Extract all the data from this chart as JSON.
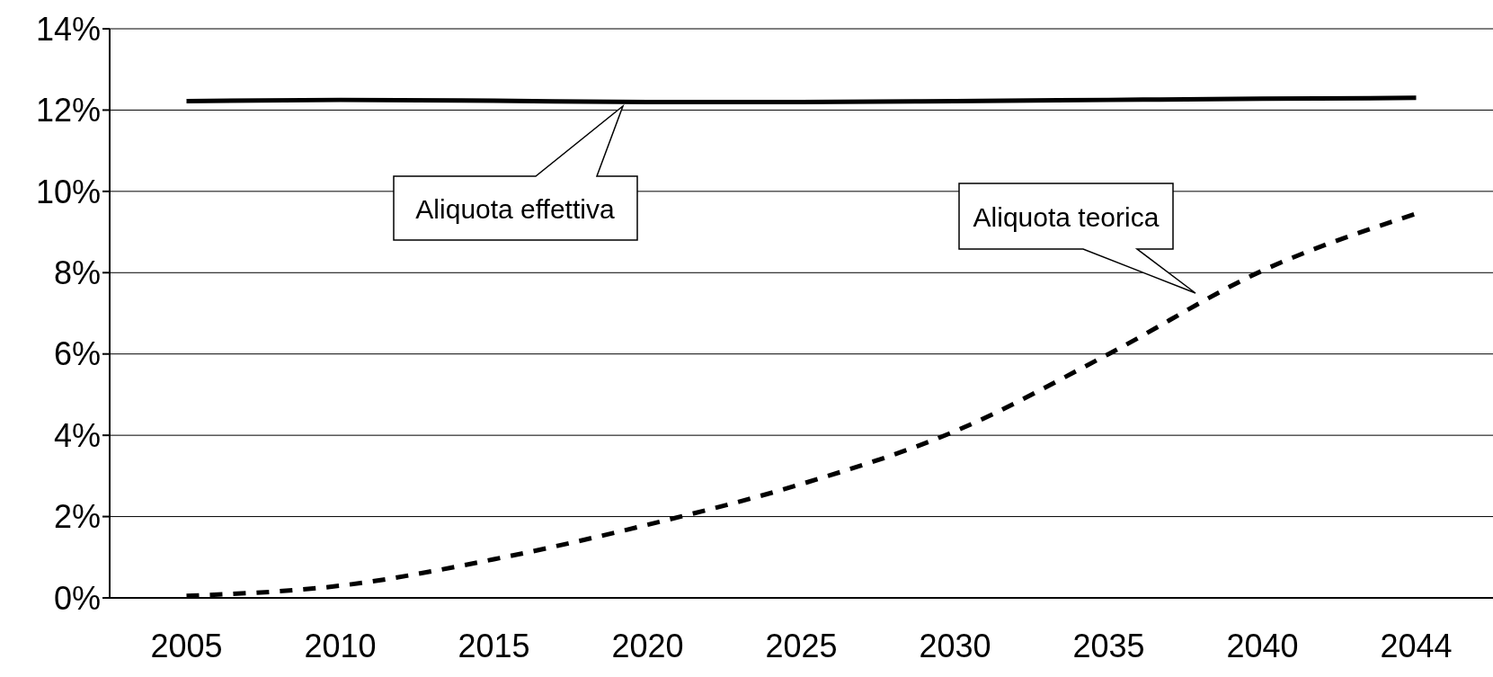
{
  "chart_data": {
    "type": "line",
    "categories": [
      "2005",
      "2010",
      "2015",
      "2020",
      "2025",
      "2030",
      "2035",
      "2040",
      "2044"
    ],
    "series": [
      {
        "color": "#000000",
        "line_style": "solid",
        "values": [
          12.22,
          12.25,
          12.23,
          12.2,
          12.2,
          12.22,
          12.25,
          12.28,
          12.3
        ]
      },
      {
        "color": "#000000",
        "line_style": "dashed",
        "values": [
          0.05,
          0.3,
          0.95,
          1.8,
          2.8,
          4.1,
          6.0,
          8.05,
          9.45
        ]
      }
    ],
    "ylim": [
      0,
      14
    ],
    "yticks": [
      {
        "value": 0,
        "label": "0%"
      },
      {
        "value": 2,
        "label": "2%"
      },
      {
        "value": 4,
        "label": "4%"
      },
      {
        "value": 6,
        "label": "6%"
      },
      {
        "value": 8,
        "label": "8%"
      },
      {
        "value": 10,
        "label": "10%"
      },
      {
        "value": 12,
        "label": "12%"
      },
      {
        "value": 14,
        "label": "14%"
      }
    ],
    "grid": "y",
    "marker": "none",
    "annotations": [
      "Aliquota effettiva",
      "Aliquota teorica"
    ]
  }
}
